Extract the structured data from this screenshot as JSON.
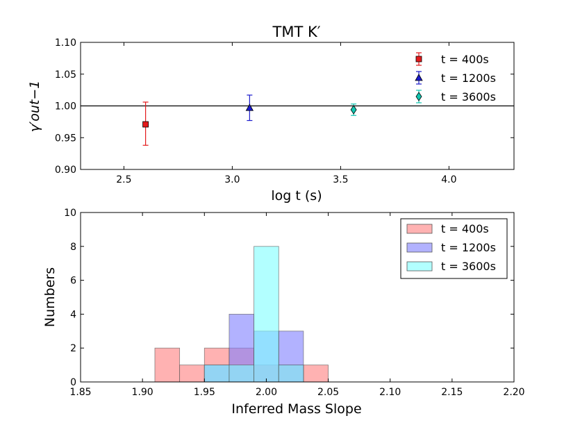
{
  "chart_data": [
    {
      "type": "scatter",
      "title": "TMT K′",
      "xlabel": "log t (s)",
      "ylabel": "γ′out−1",
      "xlim": [
        2.3,
        4.3
      ],
      "ylim": [
        0.9,
        1.1
      ],
      "xticks": [
        "2.5",
        "3.0",
        "3.5",
        "4.0"
      ],
      "yticks": [
        "0.90",
        "0.95",
        "1.00",
        "1.05",
        "1.10"
      ],
      "reference_line": 1.0,
      "legend_position": "top-right",
      "series": [
        {
          "name": "t = 400s",
          "color": "#e41a1c",
          "marker": "square",
          "x": 2.6,
          "y": 0.971,
          "yerr_low": 0.938,
          "yerr_high": 1.006
        },
        {
          "name": "t = 1200s",
          "color": "#1a1acc",
          "marker": "triangle",
          "x": 3.08,
          "y": 0.997,
          "yerr_low": 0.977,
          "yerr_high": 1.017
        },
        {
          "name": "t = 3600s",
          "color": "#11c5b0",
          "marker": "diamond",
          "x": 3.56,
          "y": 0.994,
          "yerr_low": 0.985,
          "yerr_high": 1.003
        }
      ]
    },
    {
      "type": "bar",
      "subtype": "histogram",
      "xlabel": "Inferred Mass Slope",
      "ylabel": "Numbers",
      "xlim": [
        1.85,
        2.2
      ],
      "ylim": [
        0,
        10
      ],
      "xticks": [
        "1.85",
        "1.90",
        "1.95",
        "2.00",
        "2.05",
        "2.10",
        "2.15",
        "2.20"
      ],
      "yticks": [
        "0",
        "2",
        "4",
        "6",
        "8",
        "10"
      ],
      "bin_width": 0.02,
      "legend_position": "top-right",
      "series": [
        {
          "name": "t = 400s",
          "color": "#ff7f7f",
          "bins": [
            [
              1.91,
              2
            ],
            [
              1.93,
              1
            ],
            [
              1.95,
              2
            ],
            [
              1.97,
              2
            ],
            [
              1.99,
              1
            ],
            [
              2.01,
              1
            ],
            [
              2.03,
              1
            ]
          ]
        },
        {
          "name": "t = 1200s",
          "color": "#7f7fff",
          "bins": [
            [
              1.95,
              1
            ],
            [
              1.97,
              4
            ],
            [
              1.99,
              3
            ],
            [
              2.01,
              3
            ]
          ]
        },
        {
          "name": "t = 3600s",
          "color": "#7fffff",
          "bins": [
            [
              1.95,
              1
            ],
            [
              1.97,
              1
            ],
            [
              1.99,
              8
            ],
            [
              2.01,
              1
            ]
          ]
        }
      ]
    }
  ]
}
